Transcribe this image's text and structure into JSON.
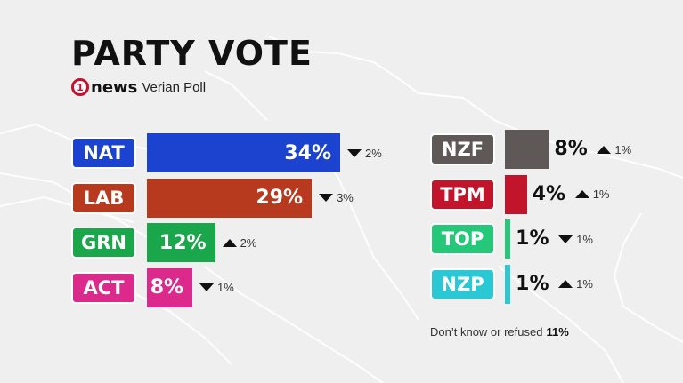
{
  "title": "PARTY VOTE",
  "logo": {
    "mark": "1",
    "word": "news"
  },
  "poll_name": "Verian Poll",
  "chart_data": [
    {
      "type": "bar",
      "orientation": "horizontal",
      "categories": [
        "NAT",
        "LAB",
        "GRN",
        "ACT"
      ],
      "values": [
        34,
        29,
        12,
        8
      ],
      "labels": [
        "34%",
        "29%",
        "12%",
        "8%"
      ],
      "changes": [
        {
          "dir": "down",
          "text": "2%"
        },
        {
          "dir": "down",
          "text": "3%"
        },
        {
          "dir": "up",
          "text": "2%"
        },
        {
          "dir": "down",
          "text": "1%"
        }
      ],
      "colors": [
        "#1b43cf",
        "#b83a1e",
        "#1aa64b",
        "#db2a8c"
      ],
      "xlim": [
        0,
        34
      ]
    },
    {
      "type": "bar",
      "orientation": "horizontal",
      "categories": [
        "NZF",
        "TPM",
        "TOP",
        "NZP"
      ],
      "values": [
        8,
        4,
        1,
        1
      ],
      "labels": [
        "8%",
        "4%",
        "1%",
        "1%"
      ],
      "changes": [
        {
          "dir": "up",
          "text": "1%"
        },
        {
          "dir": "up",
          "text": "1%"
        },
        {
          "dir": "down",
          "text": "1%"
        },
        {
          "dir": "up",
          "text": "1%"
        }
      ],
      "colors": [
        "#5e5957",
        "#c2152c",
        "#25c879",
        "#2ac8d4"
      ],
      "xlim": [
        0,
        34
      ]
    }
  ],
  "footnote": {
    "text": "Don’t know or refused",
    "value": "11%"
  }
}
